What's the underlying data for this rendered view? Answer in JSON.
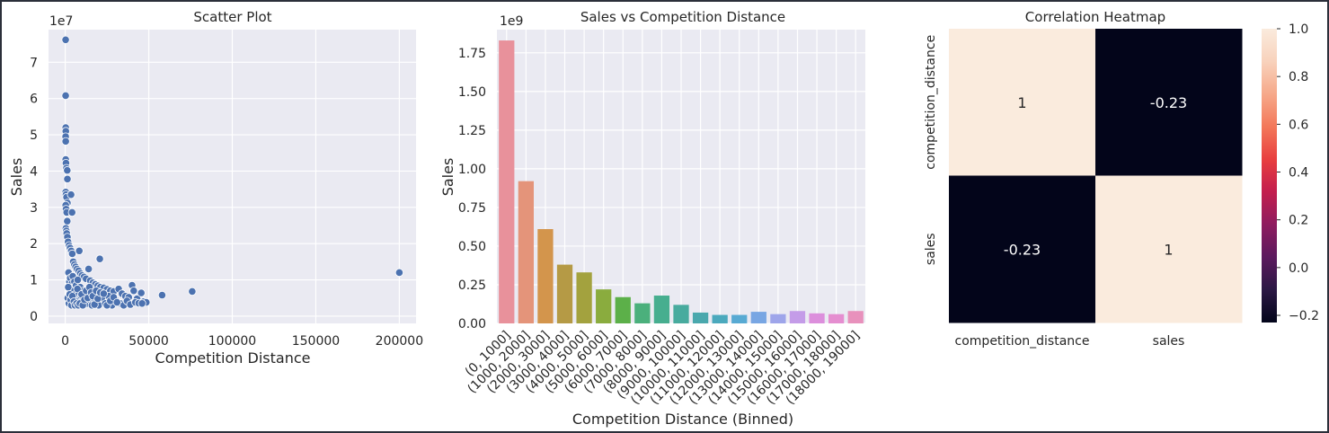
{
  "chart_data": [
    {
      "type": "scatter",
      "title": "Scatter Plot",
      "xlabel": "Competition Distance",
      "ylabel": "Sales",
      "y_offset_text": "1e7",
      "xlim": [
        -10000,
        210000
      ],
      "ylim": [
        -0.2,
        7.9
      ],
      "x_ticks": [
        0,
        50000,
        100000,
        150000,
        200000
      ],
      "x_tick_labels": [
        "0",
        "50000",
        "100000",
        "150000",
        "200000"
      ],
      "y_ticks": [
        0,
        1,
        2,
        3,
        4,
        5,
        6,
        7
      ],
      "y_tick_labels": [
        "0",
        "1",
        "2",
        "3",
        "4",
        "5",
        "6",
        "7"
      ],
      "grid": true,
      "points": [
        [
          250,
          7.62
        ],
        [
          250,
          6.08
        ],
        [
          300,
          5.2
        ],
        [
          350,
          5.1
        ],
        [
          250,
          4.95
        ],
        [
          300,
          4.82
        ],
        [
          300,
          4.32
        ],
        [
          450,
          4.22
        ],
        [
          700,
          4.08
        ],
        [
          1200,
          4.02
        ],
        [
          1300,
          3.78
        ],
        [
          300,
          3.42
        ],
        [
          450,
          3.35
        ],
        [
          800,
          3.28
        ],
        [
          1300,
          3.12
        ],
        [
          3500,
          3.35
        ],
        [
          300,
          3.06
        ],
        [
          500,
          2.95
        ],
        [
          900,
          2.86
        ],
        [
          4100,
          2.86
        ],
        [
          1200,
          2.62
        ],
        [
          400,
          2.42
        ],
        [
          700,
          2.35
        ],
        [
          900,
          2.28
        ],
        [
          1300,
          2.18
        ],
        [
          1700,
          2.05
        ],
        [
          2300,
          1.95
        ],
        [
          2900,
          1.88
        ],
        [
          3600,
          1.8
        ],
        [
          4200,
          1.72
        ],
        [
          8400,
          1.8
        ],
        [
          20700,
          1.58
        ],
        [
          4800,
          1.5
        ],
        [
          5500,
          1.42
        ],
        [
          6200,
          1.36
        ],
        [
          7000,
          1.3
        ],
        [
          8000,
          1.25
        ],
        [
          9000,
          1.18
        ],
        [
          10000,
          1.12
        ],
        [
          11200,
          1.08
        ],
        [
          12500,
          1.03
        ],
        [
          14000,
          1.3
        ],
        [
          15000,
          0.98
        ],
        [
          16500,
          0.92
        ],
        [
          18000,
          0.88
        ],
        [
          19500,
          0.84
        ],
        [
          21000,
          0.8
        ],
        [
          23000,
          0.78
        ],
        [
          25000,
          0.74
        ],
        [
          27000,
          0.7
        ],
        [
          29000,
          0.68
        ],
        [
          32000,
          0.75
        ],
        [
          34000,
          0.62
        ],
        [
          36000,
          0.55
        ],
        [
          38000,
          0.52
        ],
        [
          40000,
          0.85
        ],
        [
          41000,
          0.7
        ],
        [
          43000,
          0.48
        ],
        [
          45500,
          0.64
        ],
        [
          47000,
          0.4
        ],
        [
          48500,
          0.38
        ],
        [
          58000,
          0.58
        ],
        [
          76000,
          0.68
        ],
        [
          200000,
          1.2
        ],
        [
          2000,
          1.2
        ],
        [
          2500,
          0.95
        ],
        [
          3000,
          1.05
        ],
        [
          3500,
          0.8
        ],
        [
          4000,
          0.9
        ],
        [
          4500,
          1.1
        ],
        [
          5000,
          0.7
        ],
        [
          5500,
          0.95
        ],
        [
          6000,
          0.6
        ],
        [
          6500,
          0.85
        ],
        [
          7000,
          0.5
        ],
        [
          7500,
          1.0
        ],
        [
          8000,
          0.6
        ],
        [
          8500,
          0.45
        ],
        [
          9000,
          0.8
        ],
        [
          9500,
          0.55
        ],
        [
          10000,
          0.4
        ],
        [
          11000,
          0.7
        ],
        [
          12000,
          0.5
        ],
        [
          13000,
          0.35
        ],
        [
          14000,
          0.6
        ],
        [
          15000,
          0.45
        ],
        [
          16000,
          0.3
        ],
        [
          17000,
          0.65
        ],
        [
          18000,
          0.4
        ],
        [
          19000,
          0.55
        ],
        [
          20000,
          0.3
        ],
        [
          22000,
          0.5
        ],
        [
          24000,
          0.35
        ],
        [
          26000,
          0.55
        ],
        [
          28000,
          0.3
        ],
        [
          30000,
          0.45
        ],
        [
          33000,
          0.35
        ],
        [
          35000,
          0.3
        ],
        [
          37000,
          0.42
        ],
        [
          39000,
          0.32
        ],
        [
          42000,
          0.38
        ],
        [
          44000,
          0.36
        ],
        [
          46000,
          0.35
        ],
        [
          1500,
          0.5
        ],
        [
          1800,
          0.8
        ],
        [
          2200,
          0.35
        ],
        [
          2700,
          0.6
        ],
        [
          3200,
          0.45
        ],
        [
          3800,
          0.3
        ],
        [
          4300,
          0.55
        ],
        [
          5200,
          0.4
        ],
        [
          5800,
          0.3
        ],
        [
          6800,
          0.35
        ],
        [
          7300,
          0.75
        ],
        [
          7800,
          0.3
        ],
        [
          8800,
          0.35
        ],
        [
          9800,
          0.6
        ],
        [
          10500,
          0.3
        ],
        [
          11500,
          0.45
        ],
        [
          12500,
          0.7
        ],
        [
          13500,
          0.5
        ],
        [
          14500,
          0.8
        ],
        [
          15500,
          0.65
        ],
        [
          16500,
          0.55
        ],
        [
          17500,
          0.32
        ],
        [
          18500,
          0.7
        ],
        [
          19500,
          0.48
        ],
        [
          21000,
          0.65
        ],
        [
          23000,
          0.62
        ],
        [
          25000,
          0.3
        ],
        [
          27000,
          0.42
        ],
        [
          29000,
          0.52
        ],
        [
          31000,
          0.38
        ]
      ]
    },
    {
      "type": "bar",
      "title": "Sales vs Competition Distance",
      "xlabel": "Competition Distance (Binned)",
      "ylabel": "Sales",
      "y_offset_text": "1e9",
      "ylim": [
        0,
        1.9
      ],
      "y_ticks": [
        0,
        0.25,
        0.5,
        0.75,
        1.0,
        1.25,
        1.5,
        1.75
      ],
      "y_tick_labels": [
        "0.00",
        "0.25",
        "0.50",
        "0.75",
        "1.00",
        "1.25",
        "1.50",
        "1.75"
      ],
      "grid": true,
      "categories": [
        "(0, 1000]",
        "(1000, 2000]",
        "(2000, 3000]",
        "(3000, 4000]",
        "(4000, 5000]",
        "(5000, 6000]",
        "(6000, 7000]",
        "(7000, 8000]",
        "(8000, 9000]",
        "(9000, 10000]",
        "(10000, 11000]",
        "(11000, 12000]",
        "(12000, 13000]",
        "(13000, 14000]",
        "(14000, 15000]",
        "(15000, 16000]",
        "(16000, 17000]",
        "(17000, 18000]",
        "(18000, 19000]"
      ],
      "values": [
        1.83,
        0.92,
        0.61,
        0.38,
        0.33,
        0.22,
        0.17,
        0.13,
        0.18,
        0.12,
        0.07,
        0.055,
        0.055,
        0.075,
        0.06,
        0.08,
        0.065,
        0.06,
        0.08
      ],
      "colors": [
        "#e8919b",
        "#e4947a",
        "#d3954c",
        "#b59a45",
        "#a3a23e",
        "#8aac3e",
        "#5cb049",
        "#4bb07c",
        "#47ae8f",
        "#48ab9e",
        "#4aa8ad",
        "#4ba9bd",
        "#58aad3",
        "#78a6e3",
        "#9ea5ea",
        "#c49ce8",
        "#dc8fdc",
        "#e58ed0",
        "#e891bc"
      ]
    },
    {
      "type": "heatmap",
      "title": "Correlation Heatmap",
      "row_labels": [
        "competition_distance",
        "sales"
      ],
      "col_labels": [
        "competition_distance",
        "sales"
      ],
      "values": [
        [
          1,
          -0.23
        ],
        [
          -0.23,
          1
        ]
      ],
      "annotations": [
        [
          "1",
          "-0.23"
        ],
        [
          "-0.23",
          "1"
        ]
      ],
      "vmin": -0.23,
      "vmax": 1.0,
      "colorbar_ticks": [
        1.0,
        0.8,
        0.6,
        0.4,
        0.2,
        0.0,
        -0.2
      ],
      "colorbar_tick_labels": [
        "1.0",
        "0.8",
        "0.6",
        "0.4",
        "0.2",
        "0.0",
        "−0.2"
      ],
      "colormap": [
        "#03051a",
        "#2b1844",
        "#5c1a5e",
        "#8e1c5f",
        "#c31e4e",
        "#e83f3f",
        "#f3785a",
        "#f6a98a",
        "#f8d2bc",
        "#faebdd"
      ]
    }
  ]
}
